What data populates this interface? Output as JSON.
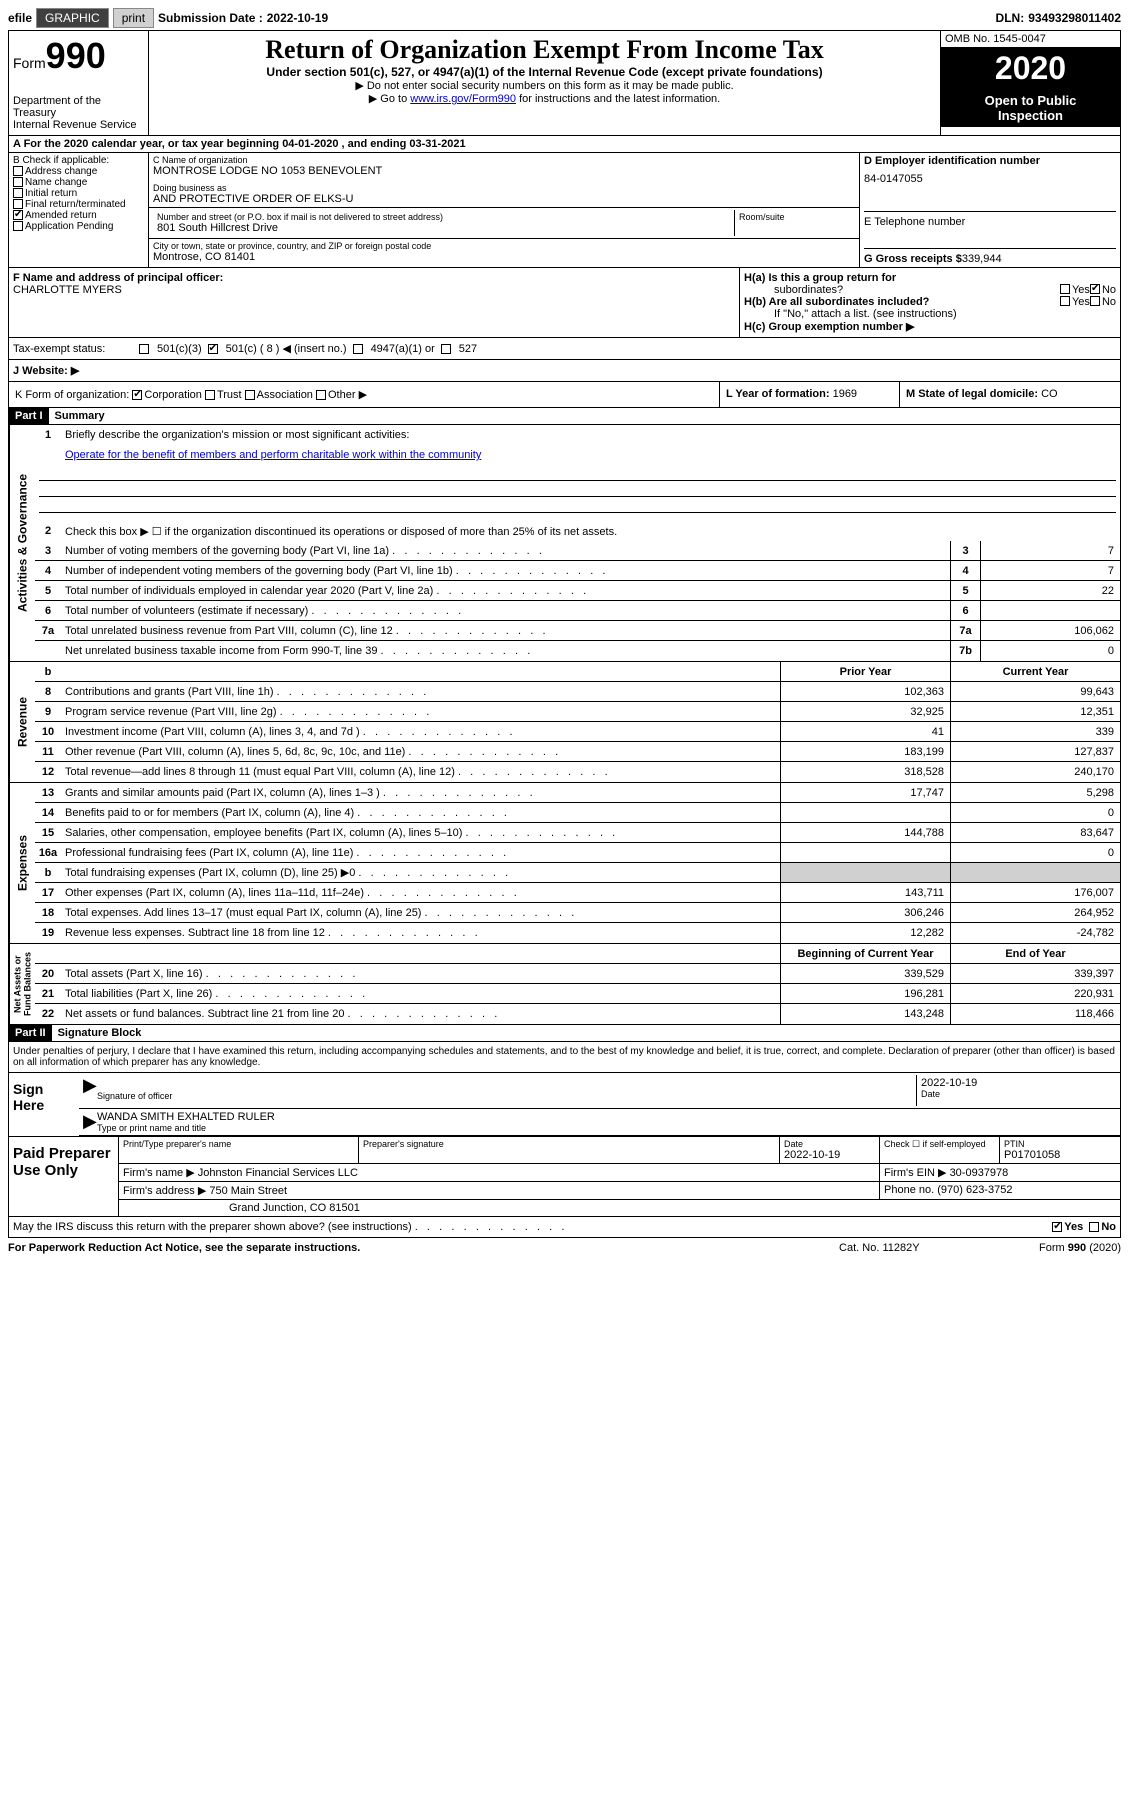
{
  "topbar": {
    "efile": "efile",
    "graphic": "GRAPHIC",
    "print": "print",
    "sub_label": "Submission Date :",
    "sub_date": "2022-10-19",
    "dln_label": "DLN:",
    "dln": "93493298011402"
  },
  "header": {
    "form_label": "Form",
    "form_num": "990",
    "dept": "Department of the Treasury\nInternal Revenue Service",
    "title": "Return of Organization Exempt From Income Tax",
    "subtitle": "Under section 501(c), 527, or 4947(a)(1) of the Internal Revenue Code (except private foundations)",
    "instr1": "▶ Do not enter social security numbers on this form as it may be made public.",
    "instr2_pre": "▶ Go to ",
    "instr2_link": "www.irs.gov/Form990",
    "instr2_post": " for instructions and the latest information.",
    "omb": "OMB No. 1545-0047",
    "year": "2020",
    "inspect": "Open to Public\nInspection"
  },
  "sectionA": {
    "text": "A For the 2020 calendar year, or tax year beginning 04-01-2020    , and ending 03-31-2021"
  },
  "sectionB": {
    "label": "B Check if applicable:",
    "items": [
      "Address change",
      "Name change",
      "Initial return",
      "Final return/terminated",
      "Amended return",
      "Application Pending"
    ],
    "checked": [
      false,
      false,
      false,
      false,
      true,
      false
    ]
  },
  "sectionC": {
    "name_label": "C Name of organization",
    "name": "MONTROSE LODGE NO 1053 BENEVOLENT",
    "dba_label": "Doing business as",
    "dba": "AND PROTECTIVE ORDER OF ELKS-U",
    "street_label": "Number and street (or P.O. box if mail is not delivered to street address)",
    "street": "801 South Hillcrest Drive",
    "room_label": "Room/suite",
    "city_label": "City or town, state or province, country, and ZIP or foreign postal code",
    "city": "Montrose, CO  81401"
  },
  "sectionD": {
    "label": "D Employer identification number",
    "value": "84-0147055"
  },
  "sectionE": {
    "label": "E Telephone number",
    "value": ""
  },
  "sectionG": {
    "label": "G Gross receipts $",
    "value": "339,944"
  },
  "sectionF": {
    "label": "F  Name and address of principal officer:",
    "name": "CHARLOTTE MYERS"
  },
  "sectionH": {
    "ha_label": "H(a)  Is this a group return for",
    "ha_sub": "subordinates?",
    "ha_yes": "Yes",
    "ha_no": "No",
    "hb_label": "H(b)  Are all subordinates included?",
    "hb_note": "If \"No,\" attach a list. (see instructions)",
    "hc_label": "H(c)  Group exemption number ▶"
  },
  "taxStatus": {
    "label": "Tax-exempt status:",
    "opt1": "501(c)(3)",
    "opt2": "501(c) ( 8 ) ◀ (insert no.)",
    "opt3": "4947(a)(1) or",
    "opt4": "527"
  },
  "sectionJ": {
    "label": "J     Website: ▶"
  },
  "sectionK": {
    "label": "K Form of organization:",
    "opts": [
      "Corporation",
      "Trust",
      "Association",
      "Other ▶"
    ]
  },
  "sectionL": {
    "label": "L Year of formation:",
    "value": "1969"
  },
  "sectionM": {
    "label": "M State of legal domicile:",
    "value": "CO"
  },
  "partI": {
    "hdr": "Part I",
    "title": "Summary",
    "gov_label": "Activities & Governance",
    "rev_label": "Revenue",
    "exp_label": "Expenses",
    "net_label": "Net Assets or\nFund Balances",
    "q1_label": "Briefly describe the organization's mission or most significant activities:",
    "q1_text": "Operate for the benefit of members and perform charitable work within the community",
    "q2": "Check this box ▶ ☐  if the organization discontinued its operations or disposed of more than 25% of its net assets.",
    "rows_gov": [
      {
        "n": "3",
        "d": "Number of voting members of the governing body (Part VI, line 1a)",
        "box": "3",
        "v": "7"
      },
      {
        "n": "4",
        "d": "Number of independent voting members of the governing body (Part VI, line 1b)",
        "box": "4",
        "v": "7"
      },
      {
        "n": "5",
        "d": "Total number of individuals employed in calendar year 2020 (Part V, line 2a)",
        "box": "5",
        "v": "22"
      },
      {
        "n": "6",
        "d": "Total number of volunteers (estimate if necessary)",
        "box": "6",
        "v": ""
      },
      {
        "n": "7a",
        "d": "Total unrelated business revenue from Part VIII, column (C), line 12",
        "box": "7a",
        "v": "106,062"
      },
      {
        "n": "",
        "d": "Net unrelated business taxable income from Form 990-T, line 39",
        "box": "7b",
        "v": "0"
      }
    ],
    "col_hdr_prior": "Prior Year",
    "col_hdr_curr": "Current Year",
    "rows_rev": [
      {
        "n": "8",
        "d": "Contributions and grants (Part VIII, line 1h)",
        "p": "102,363",
        "c": "99,643"
      },
      {
        "n": "9",
        "d": "Program service revenue (Part VIII, line 2g)",
        "p": "32,925",
        "c": "12,351"
      },
      {
        "n": "10",
        "d": "Investment income (Part VIII, column (A), lines 3, 4, and 7d )",
        "p": "41",
        "c": "339"
      },
      {
        "n": "11",
        "d": "Other revenue (Part VIII, column (A), lines 5, 6d, 8c, 9c, 10c, and 11e)",
        "p": "183,199",
        "c": "127,837"
      },
      {
        "n": "12",
        "d": "Total revenue—add lines 8 through 11 (must equal Part VIII, column (A), line 12)",
        "p": "318,528",
        "c": "240,170"
      }
    ],
    "rows_exp": [
      {
        "n": "13",
        "d": "Grants and similar amounts paid (Part IX, column (A), lines 1–3 )",
        "p": "17,747",
        "c": "5,298"
      },
      {
        "n": "14",
        "d": "Benefits paid to or for members (Part IX, column (A), line 4)",
        "p": "",
        "c": "0"
      },
      {
        "n": "15",
        "d": "Salaries, other compensation, employee benefits (Part IX, column (A), lines 5–10)",
        "p": "144,788",
        "c": "83,647"
      },
      {
        "n": "16a",
        "d": "Professional fundraising fees (Part IX, column (A), line 11e)",
        "p": "",
        "c": "0"
      },
      {
        "n": "b",
        "d": "Total fundraising expenses (Part IX, column (D), line 25) ▶0",
        "p": "shade",
        "c": "shade"
      },
      {
        "n": "17",
        "d": "Other expenses (Part IX, column (A), lines 11a–11d, 11f–24e)",
        "p": "143,711",
        "c": "176,007"
      },
      {
        "n": "18",
        "d": "Total expenses. Add lines 13–17 (must equal Part IX, column (A), line 25)",
        "p": "306,246",
        "c": "264,952"
      },
      {
        "n": "19",
        "d": "Revenue less expenses. Subtract line 18 from line 12",
        "p": "12,282",
        "c": "-24,782"
      }
    ],
    "col_hdr_beg": "Beginning of Current Year",
    "col_hdr_end": "End of Year",
    "rows_net": [
      {
        "n": "20",
        "d": "Total assets (Part X, line 16)",
        "p": "339,529",
        "c": "339,397"
      },
      {
        "n": "21",
        "d": "Total liabilities (Part X, line 26)",
        "p": "196,281",
        "c": "220,931"
      },
      {
        "n": "22",
        "d": "Net assets or fund balances. Subtract line 21 from line 20",
        "p": "143,248",
        "c": "118,466"
      }
    ]
  },
  "partII": {
    "hdr": "Part II",
    "title": "Signature Block",
    "decl": "Under penalties of perjury, I declare that I have examined this return, including accompanying schedules and statements, and to the best of my knowledge and belief, it is true, correct, and complete. Declaration of preparer (other than officer) is based on all information of which preparer has any knowledge."
  },
  "sign": {
    "label": "Sign Here",
    "sig_label": "Signature of officer",
    "date_label": "Date",
    "date": "2022-10-19",
    "name": "WANDA SMITH  EXHALTED RULER",
    "name_label": "Type or print name and title"
  },
  "prep": {
    "label": "Paid Preparer Use Only",
    "h1": "Print/Type preparer's name",
    "h2": "Preparer's signature",
    "h3_label": "Date",
    "h3": "2022-10-19",
    "h4_label": "Check ☐ if self-employed",
    "h5_label": "PTIN",
    "h5": "P01701058",
    "firm_label": "Firm's name     ▶",
    "firm": "Johnston Financial Services LLC",
    "ein_label": "Firm's EIN ▶",
    "ein": "30-0937978",
    "addr_label": "Firm's address ▶",
    "addr1": "750 Main Street",
    "addr2": "Grand Junction, CO  81501",
    "phone_label": "Phone no.",
    "phone": "(970) 623-3752"
  },
  "footer": {
    "q": "May the IRS discuss this return with the preparer shown above? (see instructions)",
    "yes": "Yes",
    "no": "No"
  },
  "bottom": {
    "note": "For Paperwork Reduction Act Notice, see the separate instructions.",
    "cat": "Cat. No. 11282Y",
    "form": "Form 990 (2020)"
  }
}
